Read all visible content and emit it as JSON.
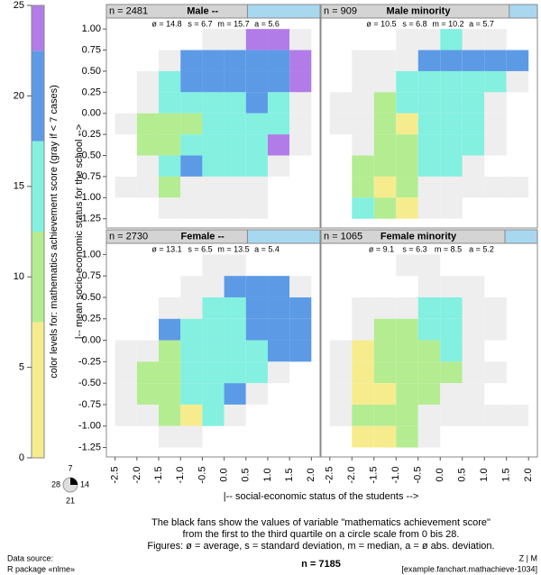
{
  "chart_data": {
    "type": "fanchart",
    "colorbar_label": "color levels for: mathematics achievement score (gray if < 7 cases)",
    "ylabel": "|-- mean socio-economic status for the school -->",
    "xlabel": "|-- social-economic status of the students -->",
    "caption": [
      "The black fans show the values of variable \"mathematics achievement score\"",
      "from the first to the third quartile on a circle scale from 0 bis 28.",
      "Figures: ø = average, s = standard deviation, m = median, a = ø abs. deviation."
    ],
    "total_n": "n = 7185",
    "source": [
      "Data source:",
      "R package «nlme»"
    ],
    "credit": [
      "Z | M",
      "[example.fanchart.mathachieve-1034]"
    ],
    "circle_scale": [
      7,
      14,
      21,
      28
    ],
    "gray_color": "#eeeeee",
    "clim": [
      0,
      25
    ],
    "cticks": [
      0,
      5,
      10,
      15,
      20,
      25
    ],
    "color_bands": [
      {
        "from": 0,
        "to": 7.5,
        "color": "#f6ec8e"
      },
      {
        "from": 7.5,
        "to": 12.5,
        "color": "#b4ec91"
      },
      {
        "from": 12.5,
        "to": 17.5,
        "color": "#83f0e0"
      },
      {
        "from": 17.5,
        "to": 22.5,
        "color": "#5c9ae6"
      },
      {
        "from": 22.5,
        "to": 25,
        "color": "#b27ce8"
      }
    ],
    "xlim": [
      -2.7,
      2.2
    ],
    "ylim": [
      -1.36,
      1.13
    ],
    "xticks": [
      -2.5,
      {
        "value": -2.0,
        "label": "-2.0"
      },
      -1.5,
      {
        "value": -1.0,
        "label": "-1.0"
      },
      -0.5,
      {
        "value": 0.0,
        "label": "0.0"
      },
      0.5,
      {
        "value": 1.0,
        "label": "1.0"
      },
      1.5,
      {
        "value": 2.0,
        "label": "2.0"
      }
    ],
    "yticks": [
      {
        "value": 1.0,
        "label": "1.00"
      },
      0.75,
      {
        "value": 0.5,
        "label": "0.50"
      },
      0.25,
      {
        "value": 0.0,
        "label": "0.00"
      },
      -0.25,
      {
        "value": -0.5,
        "label": "-0.50"
      },
      -0.75,
      {
        "value": -1.0,
        "label": "-1.00"
      },
      -1.25
    ],
    "panels": [
      {
        "title": "Male --",
        "n": "n = 2481",
        "stats": [
          "ø = 14.8",
          "s = 6.7",
          "m = 15.7",
          "a = 5.6"
        ],
        "cells": [
          [
            null,
            null,
            null,
            null,
            "#eeeeee",
            "#eeeeee",
            "#b27ce8",
            "#b27ce8",
            "#eeeeee"
          ],
          [
            null,
            null,
            "#eeeeee",
            "#5c9ae6",
            "#5c9ae6",
            "#5c9ae6",
            "#5c9ae6",
            "#5c9ae6",
            "#b27ce8"
          ],
          [
            null,
            "#eeeeee",
            "#83f0e0",
            "#5c9ae6",
            "#5c9ae6",
            "#5c9ae6",
            "#5c9ae6",
            "#5c9ae6",
            "#b27ce8"
          ],
          [
            null,
            "#eeeeee",
            "#83f0e0",
            "#83f0e0",
            "#83f0e0",
            "#83f0e0",
            "#5c9ae6",
            "#83f0e0",
            "#eeeeee"
          ],
          [
            "#eeeeee",
            "#b4ec91",
            "#b4ec91",
            "#b4ec91",
            "#83f0e0",
            "#83f0e0",
            "#83f0e0",
            "#83f0e0",
            "#eeeeee"
          ],
          [
            null,
            "#b4ec91",
            "#b4ec91",
            "#83f0e0",
            "#83f0e0",
            "#83f0e0",
            "#83f0e0",
            "#b27ce8",
            "#eeeeee"
          ],
          [
            null,
            "#eeeeee",
            "#83f0e0",
            "#5c9ae6",
            "#83f0e0",
            "#83f0e0",
            "#83f0e0",
            "#eeeeee",
            null
          ],
          [
            "#eeeeee",
            "#eeeeee",
            "#b4ec91",
            "#eeeeee",
            "#eeeeee",
            "#eeeeee",
            "#eeeeee",
            null,
            null
          ],
          [
            null,
            null,
            "#eeeeee",
            "#eeeeee",
            "#eeeeee",
            "#eeeeee",
            "#eeeeee",
            null,
            null
          ]
        ]
      },
      {
        "title": "Male minority",
        "n": "n = 909",
        "stats": [
          "ø = 10.5",
          "s = 6.8",
          "m = 10.2",
          "a = 5.7"
        ],
        "cells": [
          [
            null,
            null,
            null,
            "#eeeeee",
            "#eeeeee",
            "#83f0e0",
            "#eeeeee",
            "#eeeeee",
            null
          ],
          [
            null,
            "#eeeeee",
            "#eeeeee",
            "#eeeeee",
            "#5c9ae6",
            "#5c9ae6",
            "#5c9ae6",
            "#5c9ae6",
            "#5c9ae6"
          ],
          [
            null,
            "#eeeeee",
            "#eeeeee",
            "#83f0e0",
            "#83f0e0",
            "#83f0e0",
            "#83f0e0",
            "#83f0e0",
            "#eeeeee"
          ],
          [
            "#eeeeee",
            "#eeeeee",
            "#b4ec91",
            "#83f0e0",
            "#83f0e0",
            "#83f0e0",
            "#83f0e0",
            "#eeeeee",
            null
          ],
          [
            "#eeeeee",
            "#eeeeee",
            "#b4ec91",
            "#f6ec8e",
            "#83f0e0",
            "#83f0e0",
            "#83f0e0",
            "#eeeeee",
            null
          ],
          [
            null,
            "#eeeeee",
            "#b4ec91",
            "#b4ec91",
            "#83f0e0",
            "#83f0e0",
            "#83f0e0",
            "#eeeeee",
            null
          ],
          [
            null,
            "#b4ec91",
            "#b4ec91",
            "#b4ec91",
            "#83f0e0",
            "#83f0e0",
            "#eeeeee",
            null,
            null
          ],
          [
            null,
            "#b4ec91",
            "#f6ec8e",
            "#b4ec91",
            "#eeeeee",
            "#eeeeee",
            "#eeeeee",
            "#eeeeee",
            "#eeeeee"
          ],
          [
            null,
            "#83f0e0",
            "#b4ec91",
            "#f6ec8e",
            "#eeeeee",
            "#eeeeee",
            null,
            null,
            null
          ]
        ]
      },
      {
        "title": "Female --",
        "n": "n = 2730",
        "stats": [
          "ø = 13.1",
          "s = 6.5",
          "m = 13.5",
          "a = 5.4"
        ],
        "cells": [
          [
            null,
            null,
            null,
            null,
            "#eeeeee",
            "#eeeeee",
            null,
            null,
            null
          ],
          [
            null,
            null,
            null,
            "#eeeeee",
            "#eeeeee",
            "#5c9ae6",
            "#5c9ae6",
            "#5c9ae6",
            "#eeeeee"
          ],
          [
            null,
            null,
            "#eeeeee",
            "#eeeeee",
            "#83f0e0",
            "#83f0e0",
            "#5c9ae6",
            "#5c9ae6",
            "#5c9ae6"
          ],
          [
            null,
            null,
            "#5c9ae6",
            "#83f0e0",
            "#83f0e0",
            "#83f0e0",
            "#5c9ae6",
            "#5c9ae6",
            "#5c9ae6"
          ],
          [
            "#eeeeee",
            "#eeeeee",
            "#b4ec91",
            "#83f0e0",
            "#83f0e0",
            "#83f0e0",
            "#83f0e0",
            "#5c9ae6",
            "#5c9ae6"
          ],
          [
            "#eeeeee",
            "#b4ec91",
            "#b4ec91",
            "#83f0e0",
            "#83f0e0",
            "#83f0e0",
            "#83f0e0",
            "#eeeeee",
            null
          ],
          [
            "#eeeeee",
            "#b4ec91",
            "#b4ec91",
            "#83f0e0",
            "#83f0e0",
            "#5c9ae6",
            "#eeeeee",
            null,
            null
          ],
          [
            "#eeeeee",
            "#eeeeee",
            "#b4ec91",
            "#f6ec8e",
            "#83f0e0",
            "#eeeeee",
            null,
            null,
            null
          ],
          [
            null,
            null,
            "#eeeeee",
            "#eeeeee",
            null,
            null,
            null,
            null,
            null
          ]
        ]
      },
      {
        "title": "Female minority",
        "n": "n = 1065",
        "stats": [
          "ø = 9.1",
          "s = 6.3",
          "m = 8.5",
          "a = 5.2"
        ],
        "cells": [
          [
            null,
            null,
            null,
            "#eeeeee",
            "#eeeeee",
            null,
            null,
            null,
            null
          ],
          [
            null,
            null,
            null,
            null,
            "#eeeeee",
            "#eeeeee",
            "#eeeeee",
            null,
            null
          ],
          [
            null,
            "#eeeeee",
            "#eeeeee",
            "#eeeeee",
            "#83f0e0",
            "#83f0e0",
            "#eeeeee",
            "#eeeeee",
            null
          ],
          [
            null,
            "#eeeeee",
            "#b4ec91",
            "#b4ec91",
            "#83f0e0",
            "#83f0e0",
            "#eeeeee",
            "#eeeeee",
            null
          ],
          [
            "#eeeeee",
            "#f6ec8e",
            "#b4ec91",
            "#b4ec91",
            "#b4ec91",
            "#83f0e0",
            "#eeeeee",
            null,
            null
          ],
          [
            "#eeeeee",
            "#f6ec8e",
            "#b4ec91",
            "#b4ec91",
            "#b4ec91",
            "#b4ec91",
            "#eeeeee",
            "#eeeeee",
            null
          ],
          [
            "#eeeeee",
            "#f6ec8e",
            "#f6ec8e",
            "#b4ec91",
            "#b4ec91",
            "#eeeeee",
            "#eeeeee",
            null,
            null
          ],
          [
            "#eeeeee",
            "#b4ec91",
            "#b4ec91",
            "#b4ec91",
            "#eeeeee",
            "#eeeeee",
            "#eeeeee",
            "#eeeeee",
            "#eeeeee"
          ],
          [
            null,
            "#f6ec8e",
            "#f6ec8e",
            "#b4ec91",
            "#eeeeee",
            null,
            null,
            null,
            null
          ]
        ]
      }
    ]
  }
}
